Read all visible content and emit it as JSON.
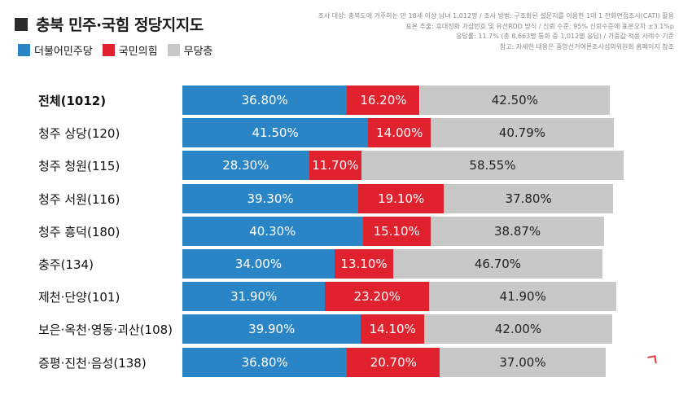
{
  "header": {
    "title": "충북 민주·국힘 정당지지도"
  },
  "notes": [
    "조사 대상: 충북도에 거주하는 만 18세 이상 남녀 1,012명 / 조사 방법: 구조화된 설문지를 이용한 1대 1 전화면접조사(CATI) 활용",
    "표본 추출: 휴대전화 가상번호 및 유선RDD 방식 / 신뢰 수준: 95% 신뢰수준에 표본오차 ±3.1%p",
    "응답률: 11.7% (총 8,663명 통화 중 1,012명 응답) / 가중값 적용 사례수 기준",
    "참고: 자세한 내용은 중앙선거여론조사심의위원회 홈페이지 참조"
  ],
  "legend": [
    {
      "label": "더불어민주당",
      "color": "#2a85c7"
    },
    {
      "label": "국민의힘",
      "color": "#e0222f"
    },
    {
      "label": "무당층",
      "color": "#c8c8c8"
    }
  ],
  "chart_data": {
    "type": "bar",
    "orientation": "horizontal",
    "stacked": true,
    "title": "충북 민주·국힘 정당지지도",
    "categories": [
      "전체(1012)",
      "청주 상당(120)",
      "청주 청원(115)",
      "청주 서원(116)",
      "청주 흥덕(180)",
      "충주(134)",
      "제천·단양(101)",
      "보은·옥천·영동·괴산(108)",
      "증평·진천·음성(138)"
    ],
    "series": [
      {
        "name": "더불어민주당",
        "color": "#2a85c7",
        "values": [
          36.8,
          41.5,
          28.3,
          39.3,
          40.3,
          34.0,
          31.9,
          39.9,
          36.8
        ],
        "labels": [
          "36.80%",
          "41.50%",
          "28.30%",
          "39.30%",
          "40.30%",
          "34.00%",
          "31.90%",
          "39.90%",
          "36.80%"
        ]
      },
      {
        "name": "국민의힘",
        "color": "#e0222f",
        "values": [
          16.2,
          14.0,
          11.7,
          19.1,
          15.1,
          13.1,
          23.2,
          14.1,
          20.7
        ],
        "labels": [
          "16.20%",
          "14.00%",
          "11.70%",
          "19.10%",
          "15.10%",
          "13.10%",
          "23.20%",
          "14.10%",
          "20.70%"
        ]
      },
      {
        "name": "무당층",
        "color": "#c8c8c8",
        "values": [
          42.5,
          40.79,
          58.55,
          37.8,
          38.87,
          46.7,
          41.9,
          42.0,
          37.0
        ],
        "labels": [
          "42.50%",
          "40.79%",
          "58.55%",
          "37.80%",
          "38.87%",
          "46.70%",
          "41.90%",
          "42.00%",
          "37.00%"
        ]
      }
    ],
    "unit": "%",
    "legend_position": "top-left",
    "grid": false
  }
}
